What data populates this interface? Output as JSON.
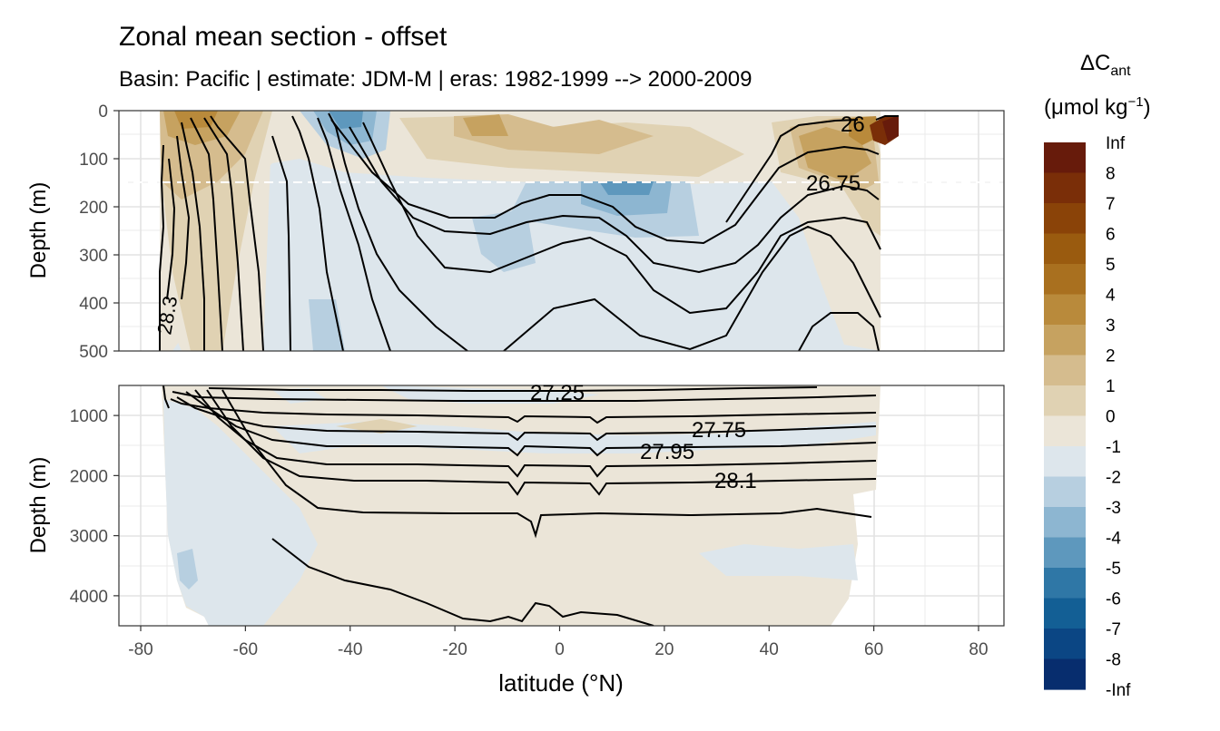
{
  "chart_data": {
    "type": "heatmap",
    "title": "Zonal mean section - offset",
    "subtitle": "Basin: Pacific | estimate: JDM-M | eras: 1982-1999 --> 2000-2009",
    "xlabel": "latitude (°N)",
    "ylabel": "Depth (m)",
    "xlim": [
      -85,
      85
    ],
    "x_ticks": [
      -80,
      -60,
      -40,
      -20,
      0,
      20,
      40,
      60,
      80
    ],
    "panels": [
      {
        "name": "upper",
        "ylim": [
          0,
          500
        ],
        "y_ticks": [
          0,
          100,
          200,
          300,
          400,
          500
        ]
      },
      {
        "name": "lower",
        "ylim": [
          500,
          4500
        ],
        "y_ticks": [
          1000,
          2000,
          3000,
          4000
        ]
      }
    ],
    "reference_depth": 150,
    "legend": {
      "title_main": "ΔC",
      "title_sub": "ant",
      "unit_pre": "(μmol kg",
      "unit_sup": "−1",
      "unit_post": ")",
      "labels": [
        "Inf",
        "8",
        "7",
        "6",
        "5",
        "4",
        "3",
        "2",
        "1",
        "0",
        "-1",
        "-2",
        "-3",
        "-4",
        "-5",
        "-6",
        "-7",
        "-8",
        "-Inf"
      ],
      "colors": [
        "#671b0b",
        "#7a2e08",
        "#8a4308",
        "#9a5b0f",
        "#a9701f",
        "#b98a3b",
        "#c6a260",
        "#d5bc8e",
        "#e0d2b3",
        "#ebe5d8",
        "#dde6ec",
        "#b7cfe0",
        "#8db6d1",
        "#5e98bd",
        "#2f77a6",
        "#135f95",
        "#0b4684",
        "#072d6e",
        "#031a58"
      ]
    },
    "isopycnal_labels": [
      "26",
      "26.75",
      "28.3",
      "27.25",
      "27.75",
      "27.95",
      "28.1"
    ]
  }
}
